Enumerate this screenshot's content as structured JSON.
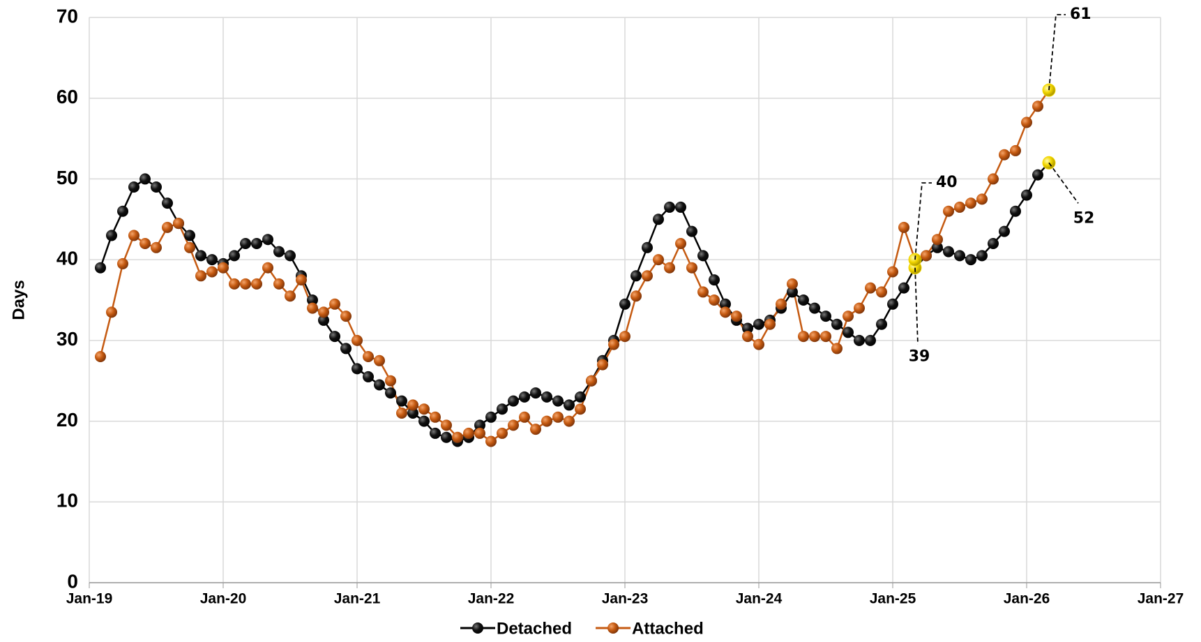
{
  "chart_data": {
    "type": "line",
    "y_label": "Days",
    "x": [
      "2019-02",
      "2019-03",
      "2019-04",
      "2019-05",
      "2019-06",
      "2019-07",
      "2019-08",
      "2019-09",
      "2019-10",
      "2019-11",
      "2019-12",
      "2020-01",
      "2020-02",
      "2020-03",
      "2020-04",
      "2020-05",
      "2020-06",
      "2020-07",
      "2020-08",
      "2020-09",
      "2020-10",
      "2020-11",
      "2020-12",
      "2021-01",
      "2021-02",
      "2021-03",
      "2021-04",
      "2021-05",
      "2021-06",
      "2021-07",
      "2021-08",
      "2021-09",
      "2021-10",
      "2021-11",
      "2021-12",
      "2022-01",
      "2022-02",
      "2022-03",
      "2022-04",
      "2022-05",
      "2022-06",
      "2022-07",
      "2022-08",
      "2022-09",
      "2022-10",
      "2022-11",
      "2022-12",
      "2023-01",
      "2023-02",
      "2023-03",
      "2023-04",
      "2023-05",
      "2023-06",
      "2023-07",
      "2023-08",
      "2023-09",
      "2023-10",
      "2023-11",
      "2023-12",
      "2024-01",
      "2024-02",
      "2024-03",
      "2024-04",
      "2024-05",
      "2024-06",
      "2024-07",
      "2024-08",
      "2024-09",
      "2024-10",
      "2024-11",
      "2024-12",
      "2025-01",
      "2025-02",
      "2025-03",
      "2025-04",
      "2025-05",
      "2025-06",
      "2025-07",
      "2025-08",
      "2025-09",
      "2025-10",
      "2025-11",
      "2025-12",
      "2026-01",
      "2026-02",
      "2026-03"
    ],
    "series": [
      {
        "name": "Detached",
        "color": "#000000",
        "marker_color": "#1a1a1a",
        "values": [
          39,
          43,
          46,
          49,
          50,
          49,
          47,
          44.5,
          43,
          40.5,
          40,
          39.5,
          40.5,
          42,
          42,
          42.5,
          41,
          40.5,
          38,
          35,
          32.5,
          30.5,
          29,
          26.5,
          25.5,
          24.5,
          23.5,
          22.5,
          21,
          20,
          18.5,
          18,
          17.5,
          18,
          19.5,
          20.5,
          21.5,
          22.5,
          23,
          23.5,
          23,
          22.5,
          22,
          23,
          25,
          27.5,
          30,
          34.5,
          38,
          41.5,
          45,
          46.5,
          46.5,
          43.5,
          40.5,
          37.5,
          34.5,
          32.5,
          31.5,
          32,
          32.5,
          34,
          36,
          35,
          34,
          33,
          32,
          31,
          30,
          30,
          32,
          34.5,
          36.5,
          39,
          40.5,
          41.5,
          41,
          40.5,
          40,
          40.5,
          42,
          43.5,
          46,
          48,
          50.5,
          52
        ]
      },
      {
        "name": "Attached",
        "color": "#c55a11",
        "marker_color": "#c55a11",
        "values": [
          28,
          33.5,
          39.5,
          43,
          42,
          41.5,
          44,
          44.5,
          41.5,
          38,
          38.5,
          39,
          37,
          37,
          37,
          39,
          37,
          35.5,
          37.5,
          34,
          33.5,
          34.5,
          33,
          30,
          28,
          27.5,
          25,
          21,
          22,
          21.5,
          20.5,
          19.5,
          18,
          18.5,
          18.5,
          17.5,
          18.5,
          19.5,
          20.5,
          19,
          20,
          20.5,
          20,
          21.5,
          25,
          27,
          29.5,
          30.5,
          35.5,
          38,
          40,
          39,
          42,
          39,
          36,
          35,
          33.5,
          33,
          30.5,
          29.5,
          32,
          34.5,
          37,
          30.5,
          30.5,
          30.5,
          29,
          33,
          34,
          36.5,
          36,
          38.5,
          44,
          40,
          40.5,
          42.5,
          46,
          46.5,
          47,
          47.5,
          50,
          53,
          53.5,
          57,
          59,
          61
        ]
      }
    ],
    "highlight_x": [
      "2025-03",
      "2026-03"
    ],
    "highlight_color": "#f2d600",
    "xlim": [
      "2019-01",
      "2027-01"
    ],
    "xticks": [
      {
        "value": "2019-01",
        "label": "Jan-19"
      },
      {
        "value": "2020-01",
        "label": "Jan-20"
      },
      {
        "value": "2021-01",
        "label": "Jan-21"
      },
      {
        "value": "2022-01",
        "label": "Jan-22"
      },
      {
        "value": "2023-01",
        "label": "Jan-23"
      },
      {
        "value": "2024-01",
        "label": "Jan-24"
      },
      {
        "value": "2025-01",
        "label": "Jan-25"
      },
      {
        "value": "2026-01",
        "label": "Jan-26"
      },
      {
        "value": "2027-01",
        "label": "Jan-27"
      }
    ],
    "ylim": [
      0,
      70
    ],
    "yticks": [
      0,
      10,
      20,
      30,
      40,
      50,
      60,
      70
    ],
    "grid": true,
    "legend": "bottom"
  }
}
